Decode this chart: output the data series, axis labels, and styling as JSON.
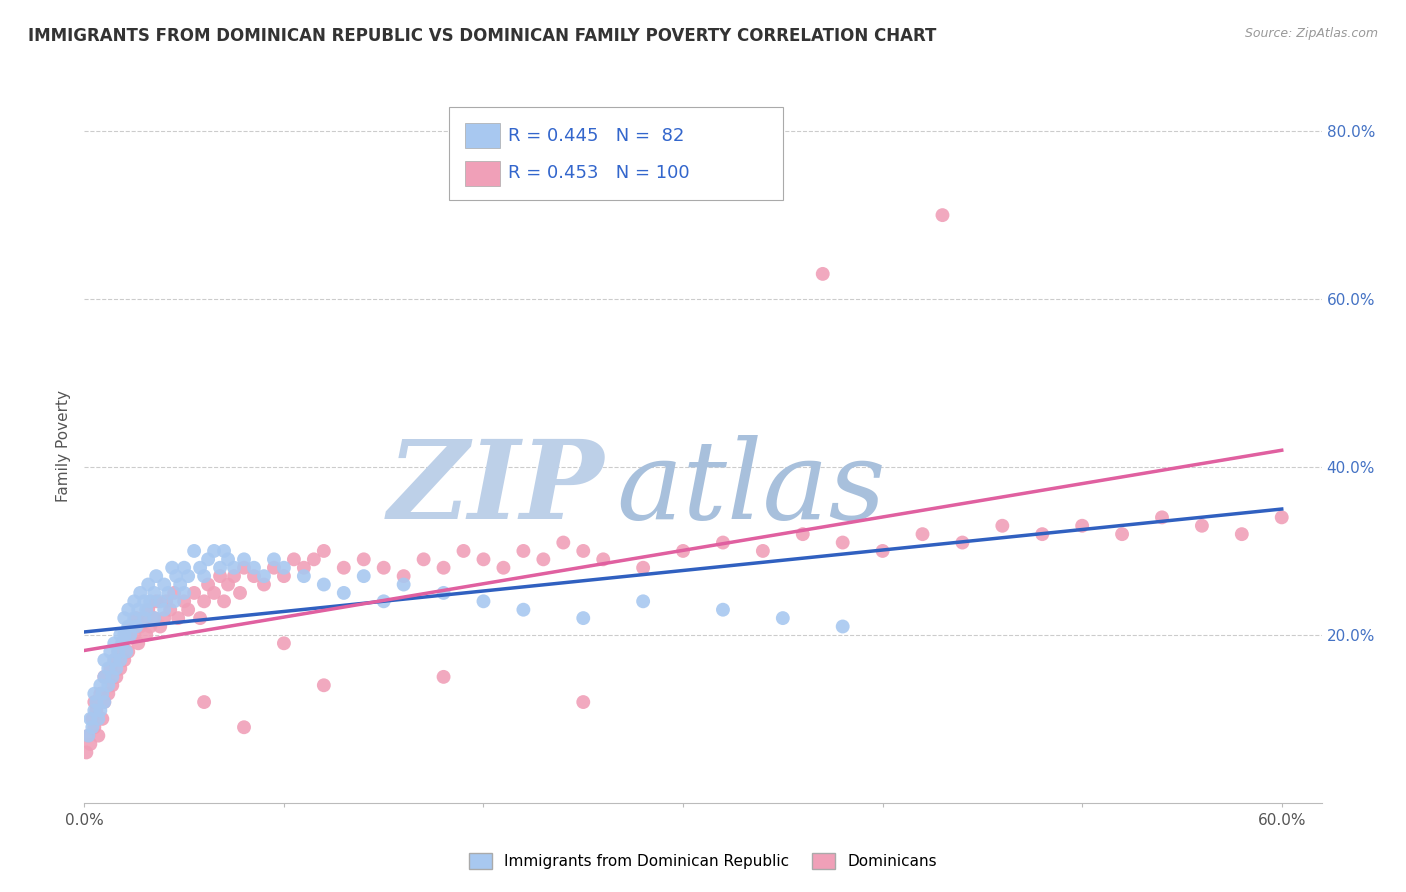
{
  "title": "IMMIGRANTS FROM DOMINICAN REPUBLIC VS DOMINICAN FAMILY POVERTY CORRELATION CHART",
  "source": "Source: ZipAtlas.com",
  "ylabel": "Family Poverty",
  "xlim": [
    0.0,
    0.62
  ],
  "ylim": [
    0.0,
    0.85
  ],
  "legend1_R": "0.445",
  "legend1_N": " 82",
  "legend2_R": "0.453",
  "legend2_N": "100",
  "blue_color": "#A8C8F0",
  "pink_color": "#F0A0B8",
  "blue_line_color": "#3060C0",
  "pink_line_color": "#E060A0",
  "gray_dash_color": "#AAAAAA",
  "watermark_zip_color": "#BDD0E8",
  "watermark_atlas_color": "#A8C0DC",
  "grid_color": "#CCCCCC",
  "blue_points_x": [
    0.002,
    0.003,
    0.004,
    0.005,
    0.005,
    0.006,
    0.007,
    0.008,
    0.008,
    0.009,
    0.01,
    0.01,
    0.01,
    0.012,
    0.012,
    0.013,
    0.014,
    0.015,
    0.015,
    0.016,
    0.017,
    0.018,
    0.018,
    0.019,
    0.02,
    0.02,
    0.021,
    0.022,
    0.022,
    0.023,
    0.025,
    0.025,
    0.026,
    0.027,
    0.028,
    0.03,
    0.03,
    0.031,
    0.032,
    0.033,
    0.035,
    0.035,
    0.036,
    0.038,
    0.04,
    0.04,
    0.042,
    0.044,
    0.045,
    0.046,
    0.048,
    0.05,
    0.05,
    0.052,
    0.055,
    0.058,
    0.06,
    0.062,
    0.065,
    0.068,
    0.07,
    0.072,
    0.075,
    0.08,
    0.085,
    0.09,
    0.095,
    0.1,
    0.11,
    0.12,
    0.13,
    0.14,
    0.15,
    0.16,
    0.18,
    0.2,
    0.22,
    0.25,
    0.28,
    0.32,
    0.35,
    0.38
  ],
  "blue_points_y": [
    0.08,
    0.1,
    0.09,
    0.11,
    0.13,
    0.12,
    0.1,
    0.14,
    0.11,
    0.13,
    0.15,
    0.12,
    0.17,
    0.14,
    0.16,
    0.18,
    0.15,
    0.17,
    0.19,
    0.16,
    0.18,
    0.2,
    0.17,
    0.19,
    0.2,
    0.22,
    0.18,
    0.21,
    0.23,
    0.2,
    0.22,
    0.24,
    0.21,
    0.23,
    0.25,
    0.22,
    0.24,
    0.23,
    0.26,
    0.24,
    0.22,
    0.25,
    0.27,
    0.24,
    0.23,
    0.26,
    0.25,
    0.28,
    0.24,
    0.27,
    0.26,
    0.25,
    0.28,
    0.27,
    0.3,
    0.28,
    0.27,
    0.29,
    0.3,
    0.28,
    0.3,
    0.29,
    0.28,
    0.29,
    0.28,
    0.27,
    0.29,
    0.28,
    0.27,
    0.26,
    0.25,
    0.27,
    0.24,
    0.26,
    0.25,
    0.24,
    0.23,
    0.22,
    0.24,
    0.23,
    0.22,
    0.21
  ],
  "pink_points_x": [
    0.001,
    0.002,
    0.003,
    0.004,
    0.005,
    0.005,
    0.006,
    0.007,
    0.008,
    0.009,
    0.01,
    0.01,
    0.012,
    0.013,
    0.014,
    0.015,
    0.016,
    0.017,
    0.018,
    0.019,
    0.02,
    0.021,
    0.022,
    0.023,
    0.025,
    0.026,
    0.027,
    0.028,
    0.03,
    0.031,
    0.032,
    0.033,
    0.035,
    0.036,
    0.038,
    0.04,
    0.041,
    0.043,
    0.045,
    0.047,
    0.05,
    0.052,
    0.055,
    0.058,
    0.06,
    0.062,
    0.065,
    0.068,
    0.07,
    0.072,
    0.075,
    0.078,
    0.08,
    0.085,
    0.09,
    0.095,
    0.1,
    0.105,
    0.11,
    0.115,
    0.12,
    0.13,
    0.14,
    0.15,
    0.16,
    0.17,
    0.18,
    0.19,
    0.2,
    0.21,
    0.22,
    0.23,
    0.24,
    0.25,
    0.26,
    0.28,
    0.3,
    0.32,
    0.34,
    0.36,
    0.38,
    0.4,
    0.42,
    0.44,
    0.46,
    0.48,
    0.5,
    0.52,
    0.54,
    0.56,
    0.58,
    0.6,
    0.37,
    0.43,
    0.1,
    0.18,
    0.25,
    0.08,
    0.12,
    0.06
  ],
  "pink_points_y": [
    0.06,
    0.08,
    0.07,
    0.1,
    0.09,
    0.12,
    0.11,
    0.08,
    0.13,
    0.1,
    0.12,
    0.15,
    0.13,
    0.16,
    0.14,
    0.17,
    0.15,
    0.18,
    0.16,
    0.19,
    0.17,
    0.2,
    0.18,
    0.21,
    0.2,
    0.22,
    0.19,
    0.21,
    0.22,
    0.2,
    0.23,
    0.21,
    0.22,
    0.24,
    0.21,
    0.22,
    0.24,
    0.23,
    0.25,
    0.22,
    0.24,
    0.23,
    0.25,
    0.22,
    0.24,
    0.26,
    0.25,
    0.27,
    0.24,
    0.26,
    0.27,
    0.25,
    0.28,
    0.27,
    0.26,
    0.28,
    0.27,
    0.29,
    0.28,
    0.29,
    0.3,
    0.28,
    0.29,
    0.28,
    0.27,
    0.29,
    0.28,
    0.3,
    0.29,
    0.28,
    0.3,
    0.29,
    0.31,
    0.3,
    0.29,
    0.28,
    0.3,
    0.31,
    0.3,
    0.32,
    0.31,
    0.3,
    0.32,
    0.31,
    0.33,
    0.32,
    0.33,
    0.32,
    0.34,
    0.33,
    0.32,
    0.34,
    0.63,
    0.7,
    0.19,
    0.15,
    0.12,
    0.09,
    0.14,
    0.12
  ]
}
